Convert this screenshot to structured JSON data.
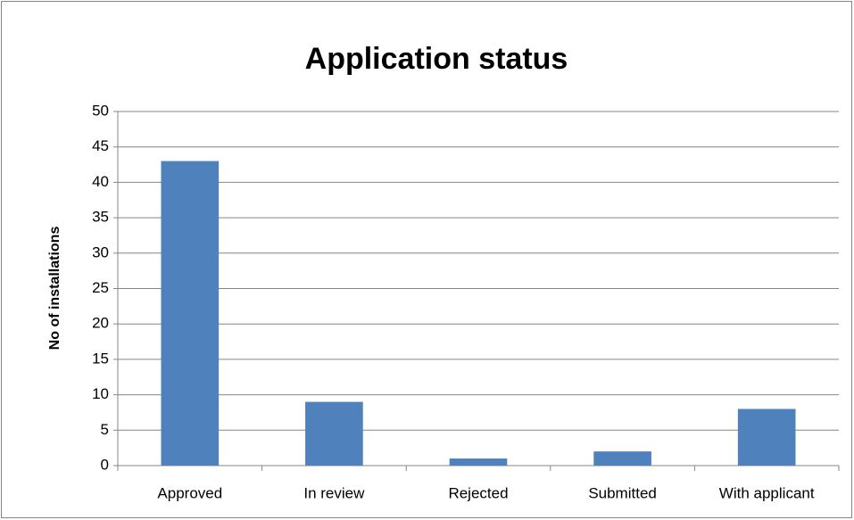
{
  "chart_data": {
    "type": "bar",
    "title": "Application status",
    "y_label": "No of installations",
    "categories": [
      "Approved",
      "In review",
      "Rejected",
      "Submitted",
      "With applicant"
    ],
    "values": [
      43,
      9,
      1,
      2,
      8
    ],
    "color": "#4f81bd",
    "ylim": [
      0,
      50
    ],
    "yticks": [
      0,
      5,
      10,
      15,
      20,
      25,
      30,
      35,
      40,
      45,
      50
    ],
    "grid": true
  }
}
